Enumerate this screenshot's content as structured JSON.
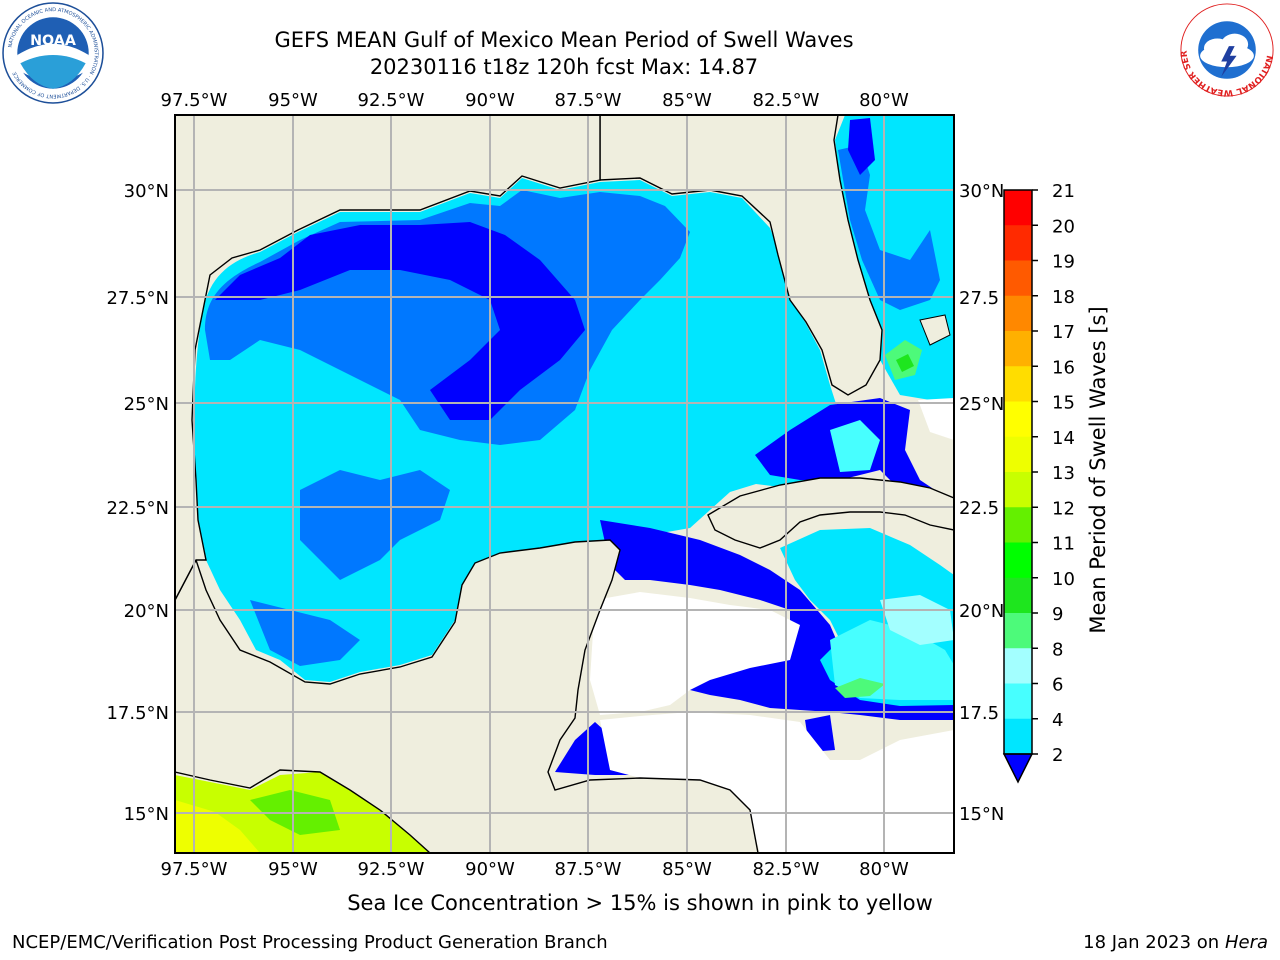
{
  "title_line1": "GEFS MEAN Gulf of Mexico Mean Period of Swell Waves",
  "title_line2": "20230116 t18z 120h fcst   Max: 14.87",
  "map": {
    "lon_ticks": [
      "97.5°W",
      "95°W",
      "92.5°W",
      "90°W",
      "87.5°W",
      "85°W",
      "82.5°W",
      "80°W"
    ],
    "lon_values": [
      -97.5,
      -95,
      -92.5,
      -90,
      -87.5,
      -85,
      -82.5,
      -80
    ],
    "lat_ticks_left": [
      "30°N",
      "27.5°N",
      "25°N",
      "22.5°N",
      "20°N",
      "17.5°N",
      "15°N"
    ],
    "lat_ticks_right": [
      "30°N",
      "27.5",
      "25°N",
      "22.5",
      "20°N",
      "17.5",
      "15°N"
    ],
    "lat_values": [
      30,
      27.5,
      25,
      22.5,
      20,
      17.5,
      15
    ],
    "lon_range": [
      -98,
      -78.3
    ],
    "lat_range": [
      14,
      32
    ],
    "grid": true,
    "colors": {
      "land": "#efeede",
      "ocean_blank": "#ffffff",
      "grid": "#b4b4b4",
      "coast": "#000000"
    }
  },
  "colorbar": {
    "label": "Mean Period of Swell Waves [s]",
    "levels": [
      "21",
      "20",
      "19",
      "18",
      "17",
      "16",
      "15",
      "14",
      "13",
      "12",
      "11",
      "10",
      "9",
      "8",
      "6",
      "4",
      "2"
    ],
    "colors": [
      "#0000ff",
      "#0078ff",
      "#00e6ff",
      "#47ffff",
      "#a3ffff",
      "#4dfa7a",
      "#1ee61e",
      "#00ff00",
      "#64f000",
      "#c8ff00",
      "#eeff00",
      "#ffff00",
      "#ffdd00",
      "#ffb000",
      "#ff8800",
      "#ff5a00",
      "#ff2a00",
      "#ff0000"
    ]
  },
  "footer": {
    "note": "Sea Ice Concentration > 15% is shown in pink to yellow",
    "credit": "NCEP/EMC/Verification Post Processing Product Generation Branch",
    "date": "18 Jan 2023 on ",
    "host": "Hera"
  },
  "logos": {
    "left": "noaa-logo",
    "right": "national-weather-service-logo",
    "left_text": "NOAA",
    "right_text": "NATIONAL WEATHER SERVICE"
  }
}
